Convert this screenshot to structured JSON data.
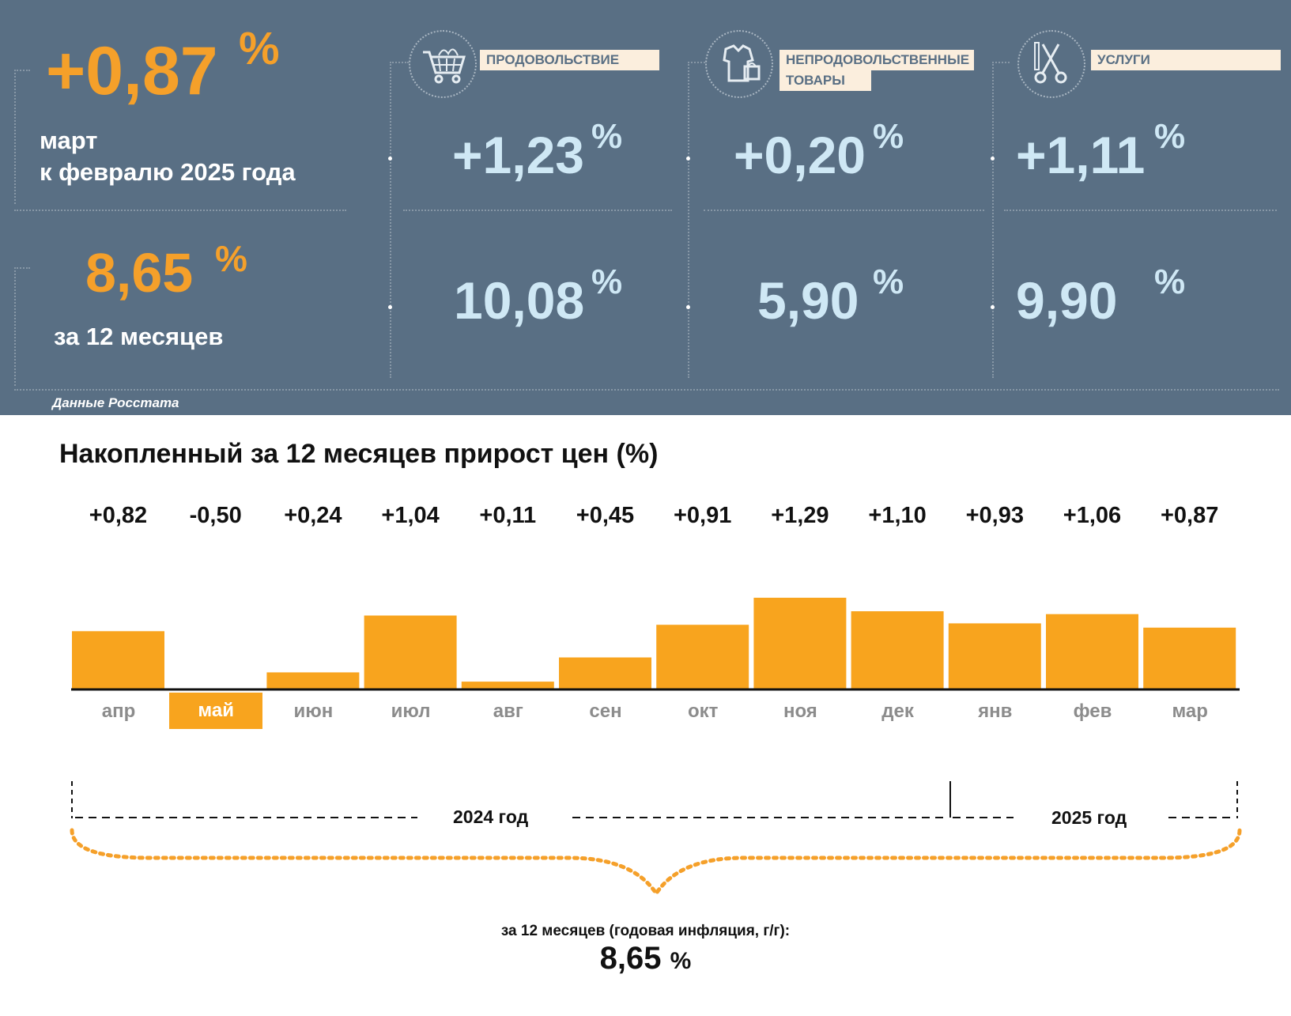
{
  "colors": {
    "panel": "#596f84",
    "orange": "#f5a02a",
    "light_blue": "#cfe8f5",
    "label_bg": "#fbeedd",
    "bar": "#f8a41e"
  },
  "panel": {
    "monthly": {
      "value": "+0,87",
      "unit": "%",
      "caption_line1": "март",
      "caption_line2": "к февралю 2025 года"
    },
    "annual": {
      "value": "8,65",
      "unit": "%",
      "caption": "за 12 месяцев"
    },
    "categories": [
      {
        "label": "ПРОДОВОЛЬСТВИЕ",
        "icon": "shopping-cart-icon",
        "monthly": "+1,23",
        "annual": "10,08",
        "unit": "%"
      },
      {
        "label_line1": "НЕПРОДОВОЛЬСТВЕННЫЕ",
        "label_line2": "ТОВАРЫ",
        "icon": "clothes-icon",
        "monthly": "+0,20",
        "annual": "5,90",
        "unit": "%"
      },
      {
        "label": "УСЛУГИ",
        "icon": "scissors-icon",
        "monthly": "+1,11",
        "annual": "9,90",
        "unit": "%"
      }
    ],
    "source": "Данные Росстата"
  },
  "chart_data": {
    "type": "bar",
    "title": "Накопленный за 12 месяцев прирост цен (%)",
    "categories": [
      "апр",
      "май",
      "июн",
      "июл",
      "авг",
      "сен",
      "окт",
      "ноя",
      "дек",
      "янв",
      "фев",
      "мар"
    ],
    "values": [
      0.82,
      -0.5,
      0.24,
      1.04,
      0.11,
      0.45,
      0.91,
      1.29,
      1.1,
      0.93,
      1.06,
      0.87
    ],
    "value_labels": [
      "+0,82",
      "-0,50",
      "+0,24",
      "+1,04",
      "+0,11",
      "+0,45",
      "+0,91",
      "+1,29",
      "+1,10",
      "+0,93",
      "+1,06",
      "+0,87"
    ],
    "ylim": [
      -0.5,
      1.29
    ],
    "grid": false,
    "years": [
      {
        "label": "2024 год"
      },
      {
        "label": "2025 год"
      }
    ],
    "summary_caption": "за 12 месяцев (годовая инфляция, г/г):",
    "summary_value": "8,65",
    "summary_unit": "%"
  }
}
